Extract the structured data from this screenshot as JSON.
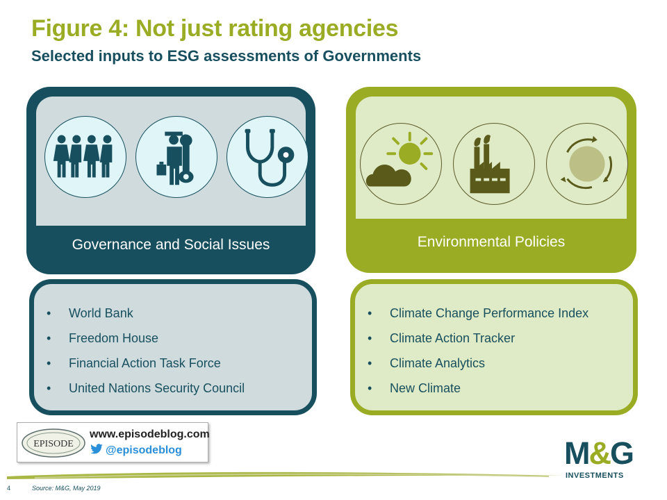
{
  "header": {
    "title": "Figure 4: Not just rating agencies",
    "subtitle": "Selected inputs to ESG assessments of Governments"
  },
  "governance": {
    "heading": "Governance and Social Issues",
    "icons": [
      "people-group-icon",
      "worker-with-wrench-icon",
      "stethoscope-icon"
    ],
    "items": [
      "World Bank",
      "Freedom House",
      "Financial Action Task Force",
      "United Nations Security Council"
    ]
  },
  "environment": {
    "heading": "Environmental Policies",
    "icons": [
      "sun-and-cloud-icon",
      "factory-icon",
      "recycle-circle-icon"
    ],
    "items": [
      "Climate Change Performance Index",
      "Climate Action Tracker",
      "Climate Analytics",
      "New Climate"
    ]
  },
  "bullet": "•",
  "episode": {
    "logo_text": "EPISODE",
    "url": "www.episodeblog.com",
    "twitter": "@episodeblog"
  },
  "brand": {
    "logo_m": "M",
    "logo_amp": "&",
    "logo_g": "G",
    "logo_sub": "INVESTMENTS"
  },
  "footer": {
    "page_number": "4",
    "source": "Source: M&G, May 2019"
  },
  "colors": {
    "teal": "#174f5e",
    "olive": "#9aac23",
    "light_teal": "#cfdbdd",
    "light_olive": "#dfebc6"
  }
}
